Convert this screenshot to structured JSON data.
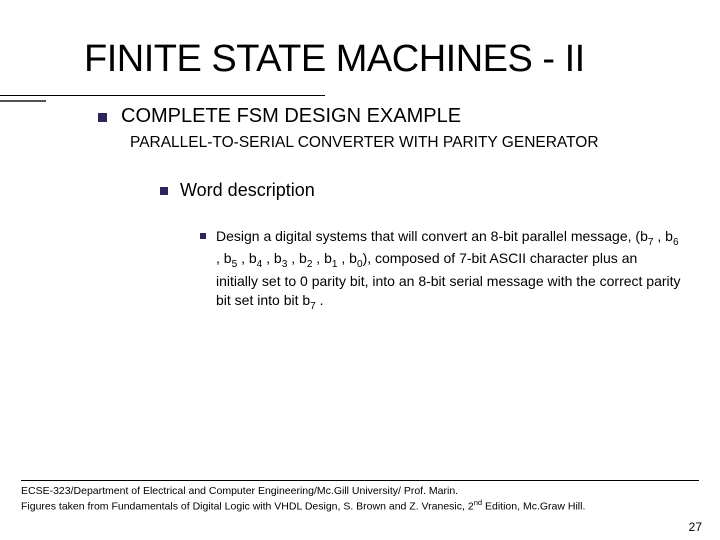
{
  "title": "FINITE STATE MACHINES - II",
  "section": {
    "heading": "COMPLETE FSM DESIGN EXAMPLE",
    "subheading": "PARALLEL-TO-SERIAL CONVERTER WITH PARITY GENERATOR",
    "topic": "Word description",
    "body_prefix": "Design a digital systems that will convert an 8-bit parallel message,  (b",
    "bits": [
      "7",
      "6",
      "5",
      "4",
      "3",
      "2",
      "1",
      "0"
    ],
    "body_mid": "), composed of 7-bit ASCII character plus an initially set to  0 parity bit,  into an 8-bit serial message with the correct parity bit set into bit  b",
    "body_last_bit": "7",
    "body_suffix": " ."
  },
  "footer": {
    "line1": "ECSE-323/Department of Electrical and Computer Engineering/Mc.Gill University/ Prof. Marin.",
    "line2_a": "Figures taken from Fundamentals of Digital Logic with VHDL Design, S. Brown and Z. Vranesic, 2",
    "line2_sup": "nd",
    "line2_b": " Edition, Mc.Graw Hill."
  },
  "page": "27",
  "colors": {
    "bullet": "#2f255d",
    "text": "#000000",
    "background": "#ffffff"
  }
}
